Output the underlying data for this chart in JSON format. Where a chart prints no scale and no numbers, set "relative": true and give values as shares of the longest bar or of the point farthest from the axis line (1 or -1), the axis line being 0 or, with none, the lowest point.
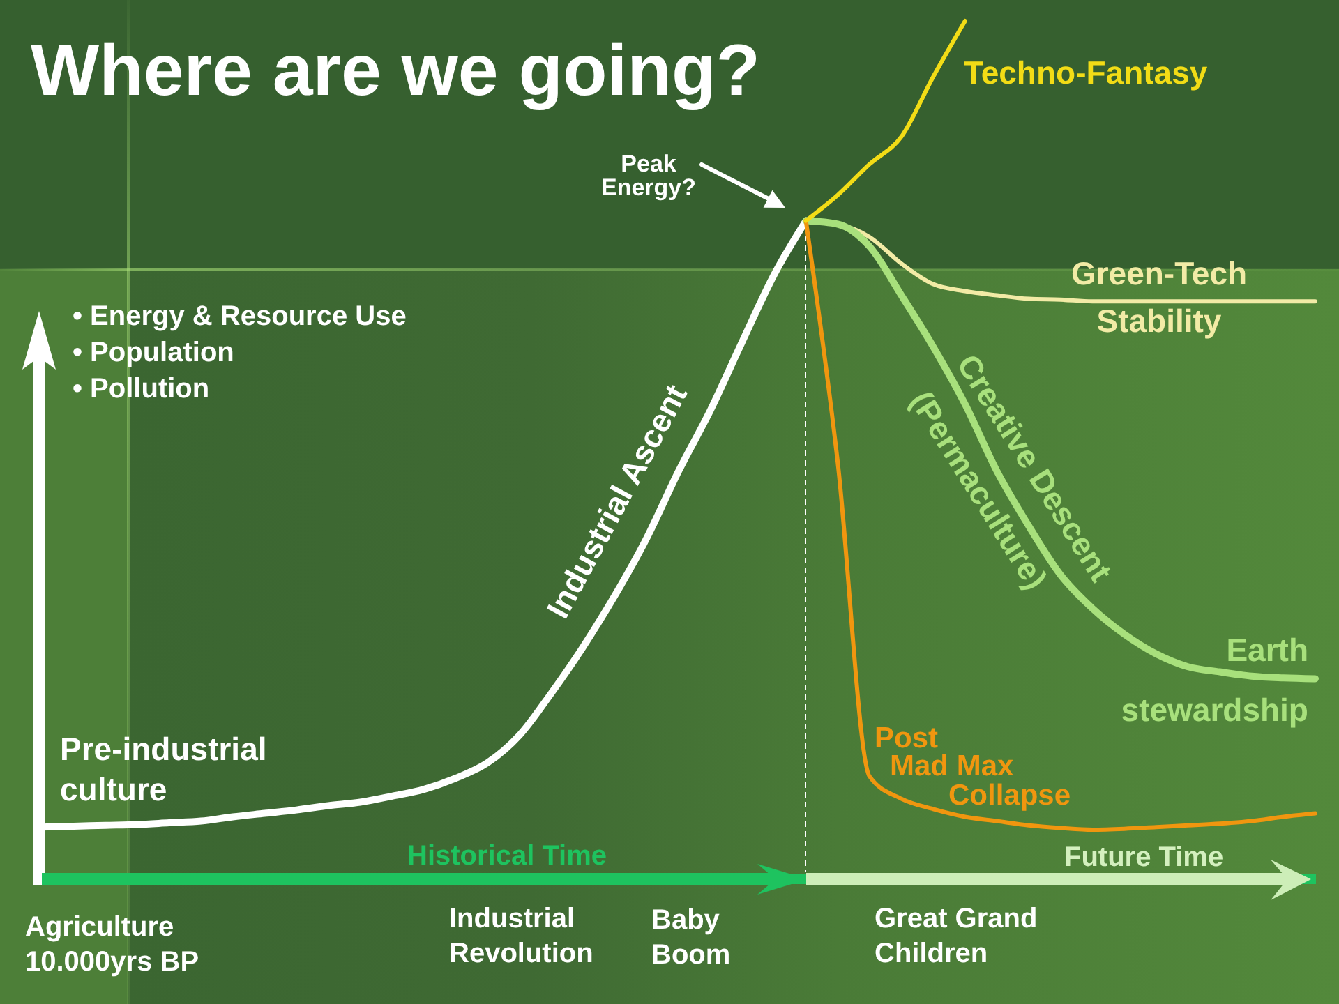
{
  "chart_data": {
    "type": "line",
    "title": "Where are we going?",
    "ylabel": "• Energy & Resource Use\n• Population\n• Pollution",
    "relative": true,
    "categories": [
      null,
      null,
      null,
      null,
      null,
      null,
      null,
      null,
      null,
      null,
      null,
      null,
      null,
      null,
      null,
      null,
      null,
      null,
      null,
      null,
      null,
      null,
      null,
      null,
      null,
      null,
      null,
      null,
      null,
      null,
      null,
      null,
      null,
      null,
      null,
      null,
      null,
      null,
      null,
      null,
      null
    ],
    "series": [
      {
        "name": "Industrial Ascent",
        "color": "#ffffff",
        "values": [
          0.06,
          0.061,
          0.062,
          0.063,
          0.065,
          0.067,
          0.072,
          0.076,
          0.08,
          0.085,
          0.089,
          0.096,
          0.104,
          0.117,
          0.135,
          0.167,
          0.216,
          0.27,
          0.33,
          0.397,
          0.475,
          0.546,
          0.626,
          0.704,
          0.767,
          null,
          null,
          null,
          null,
          null,
          null,
          null,
          null,
          null,
          null,
          null,
          null,
          null,
          null,
          null,
          null
        ]
      },
      {
        "name": "Green-Tech Stability",
        "color": "#f2eba6",
        "values": [
          null,
          null,
          null,
          null,
          null,
          null,
          null,
          null,
          null,
          null,
          null,
          null,
          null,
          null,
          null,
          null,
          null,
          null,
          null,
          null,
          null,
          null,
          null,
          null,
          0.767,
          0.763,
          0.748,
          0.717,
          0.693,
          0.685,
          0.68,
          0.676,
          0.675,
          0.673,
          0.673,
          0.673,
          0.673,
          0.673,
          0.673,
          0.673,
          0.673
        ]
      },
      {
        "name": "Creative Descent (Permaculture)",
        "color": "#a8e07c",
        "values": [
          null,
          null,
          null,
          null,
          null,
          null,
          null,
          null,
          null,
          null,
          null,
          null,
          null,
          null,
          null,
          null,
          null,
          null,
          null,
          null,
          null,
          null,
          null,
          null,
          0.767,
          0.763,
          0.737,
          0.68,
          0.62,
          0.553,
          0.475,
          0.411,
          0.354,
          0.315,
          0.285,
          0.262,
          0.247,
          0.241,
          0.236,
          0.234,
          0.233
        ]
      },
      {
        "name": "Post Mad Max Collapse",
        "color": "#f0960f",
        "values": [
          null,
          null,
          null,
          null,
          null,
          null,
          null,
          null,
          null,
          null,
          null,
          null,
          null,
          null,
          null,
          null,
          null,
          null,
          null,
          null,
          null,
          null,
          null,
          null,
          0.767,
          0.485,
          0.119,
          0.093,
          0.081,
          0.072,
          0.067,
          0.062,
          0.059,
          0.057,
          0.058,
          0.06,
          0.062,
          0.064,
          0.067,
          0.072,
          0.076
        ]
      },
      {
        "name": "Techno-Fantasy",
        "color": "#f2dc16",
        "values": [
          null,
          null,
          null,
          null,
          null,
          null,
          null,
          null,
          null,
          null,
          null,
          null,
          null,
          null,
          null,
          null,
          null,
          null,
          null,
          null,
          null,
          null,
          null,
          null,
          0.767,
          0.797,
          0.833,
          0.865,
          0.935,
          1,
          null,
          null,
          null,
          null,
          null,
          null,
          null,
          null,
          null,
          null,
          null
        ]
      }
    ],
    "annotations": [
      "Pre-industrial culture",
      "Peak Energy?",
      "Earth stewardship",
      "Historical Time",
      "Future Time",
      "Agriculture 10.000yrs BP",
      "Industrial Revolution",
      "Baby Boom",
      "Great Grand Children"
    ]
  }
}
